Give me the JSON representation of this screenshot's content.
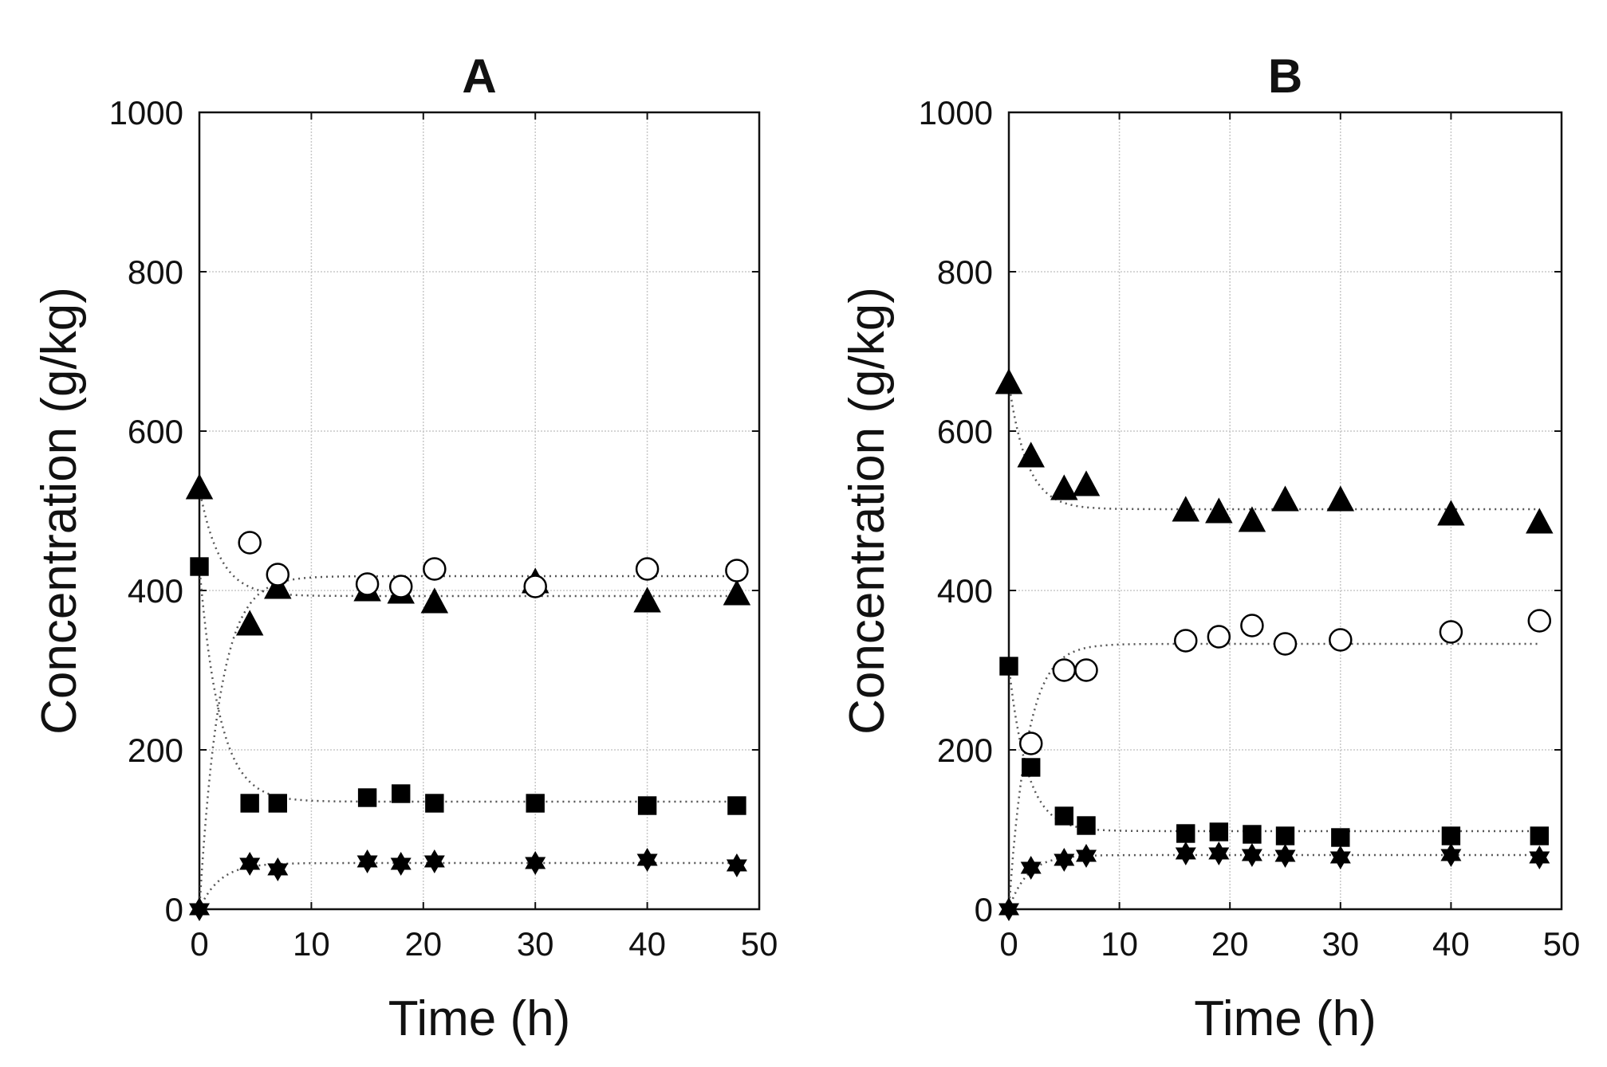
{
  "chart_data": [
    {
      "type": "scatter",
      "title": "A",
      "xlabel": "Time (h)",
      "ylabel": "Concentration (g/kg)",
      "xlim": [
        0,
        50
      ],
      "ylim": [
        0,
        1000
      ],
      "xticks": [
        "0",
        "10",
        "20",
        "30",
        "40",
        "50"
      ],
      "yticks": [
        "0",
        "200",
        "400",
        "600",
        "800",
        "1000"
      ],
      "grid": true,
      "series": [
        {
          "name": "triangle",
          "marker": "triangle",
          "x": [
            0,
            4.5,
            7,
            15,
            18,
            21,
            30,
            40,
            48
          ],
          "y": [
            528,
            357,
            403,
            400,
            397,
            385,
            410,
            386,
            395
          ],
          "fit": {
            "type": "exp",
            "y0": 528,
            "yinf": 393,
            "k": 0.55
          }
        },
        {
          "name": "open circle",
          "marker": "open-circle",
          "x": [
            4.5,
            7,
            15,
            18,
            21,
            30,
            40,
            48
          ],
          "y": [
            460,
            420,
            408,
            405,
            427,
            405,
            427,
            425
          ],
          "fit": {
            "type": "exp",
            "y0": 0,
            "yinf": 418,
            "k": 0.55
          }
        },
        {
          "name": "square",
          "marker": "square",
          "x": [
            0,
            4.5,
            7,
            15,
            18,
            21,
            30,
            40,
            48
          ],
          "y": [
            430,
            133,
            133,
            140,
            145,
            133,
            133,
            130,
            130
          ],
          "fit": {
            "type": "exp",
            "y0": 430,
            "yinf": 135,
            "k": 0.55
          }
        },
        {
          "name": "star",
          "marker": "star",
          "x": [
            0,
            4.5,
            7,
            15,
            18,
            21,
            30,
            40,
            48
          ],
          "y": [
            0,
            57,
            50,
            60,
            57,
            60,
            58,
            62,
            55
          ],
          "fit": {
            "type": "exp",
            "y0": 0,
            "yinf": 58,
            "k": 0.55
          }
        }
      ]
    },
    {
      "type": "scatter",
      "title": "B",
      "xlabel": "Time (h)",
      "ylabel": "Concentration (g/kg)",
      "xlim": [
        0,
        50
      ],
      "ylim": [
        0,
        1000
      ],
      "xticks": [
        "0",
        "10",
        "20",
        "30",
        "40",
        "50"
      ],
      "yticks": [
        "0",
        "200",
        "400",
        "600",
        "800",
        "1000"
      ],
      "grid": true,
      "series": [
        {
          "name": "triangle",
          "marker": "triangle",
          "x": [
            0,
            2,
            5,
            7,
            16,
            19,
            22,
            25,
            30,
            40,
            48
          ],
          "y": [
            660,
            568,
            527,
            532,
            500,
            498,
            487,
            513,
            513,
            495,
            485
          ],
          "fit": {
            "type": "exp",
            "y0": 660,
            "yinf": 502,
            "k": 0.6
          }
        },
        {
          "name": "open circle",
          "marker": "open-circle",
          "x": [
            2,
            5,
            7,
            16,
            19,
            22,
            25,
            30,
            40,
            48
          ],
          "y": [
            208,
            300,
            300,
            337,
            342,
            356,
            333,
            338,
            348,
            362
          ],
          "fit": {
            "type": "exp",
            "y0": 0,
            "yinf": 333,
            "k": 0.6
          }
        },
        {
          "name": "square",
          "marker": "square",
          "x": [
            0,
            2,
            5,
            7,
            16,
            19,
            22,
            25,
            30,
            40,
            48
          ],
          "y": [
            305,
            178,
            117,
            105,
            95,
            97,
            94,
            92,
            90,
            92,
            92
          ],
          "fit": {
            "type": "exp",
            "y0": 305,
            "yinf": 98,
            "k": 0.6
          }
        },
        {
          "name": "star",
          "marker": "star",
          "x": [
            0,
            2,
            5,
            7,
            16,
            19,
            22,
            25,
            30,
            40,
            48
          ],
          "y": [
            0,
            52,
            62,
            67,
            70,
            70,
            68,
            67,
            65,
            68,
            65
          ],
          "fit": {
            "type": "exp",
            "y0": 0,
            "yinf": 68,
            "k": 0.6
          }
        }
      ]
    }
  ]
}
